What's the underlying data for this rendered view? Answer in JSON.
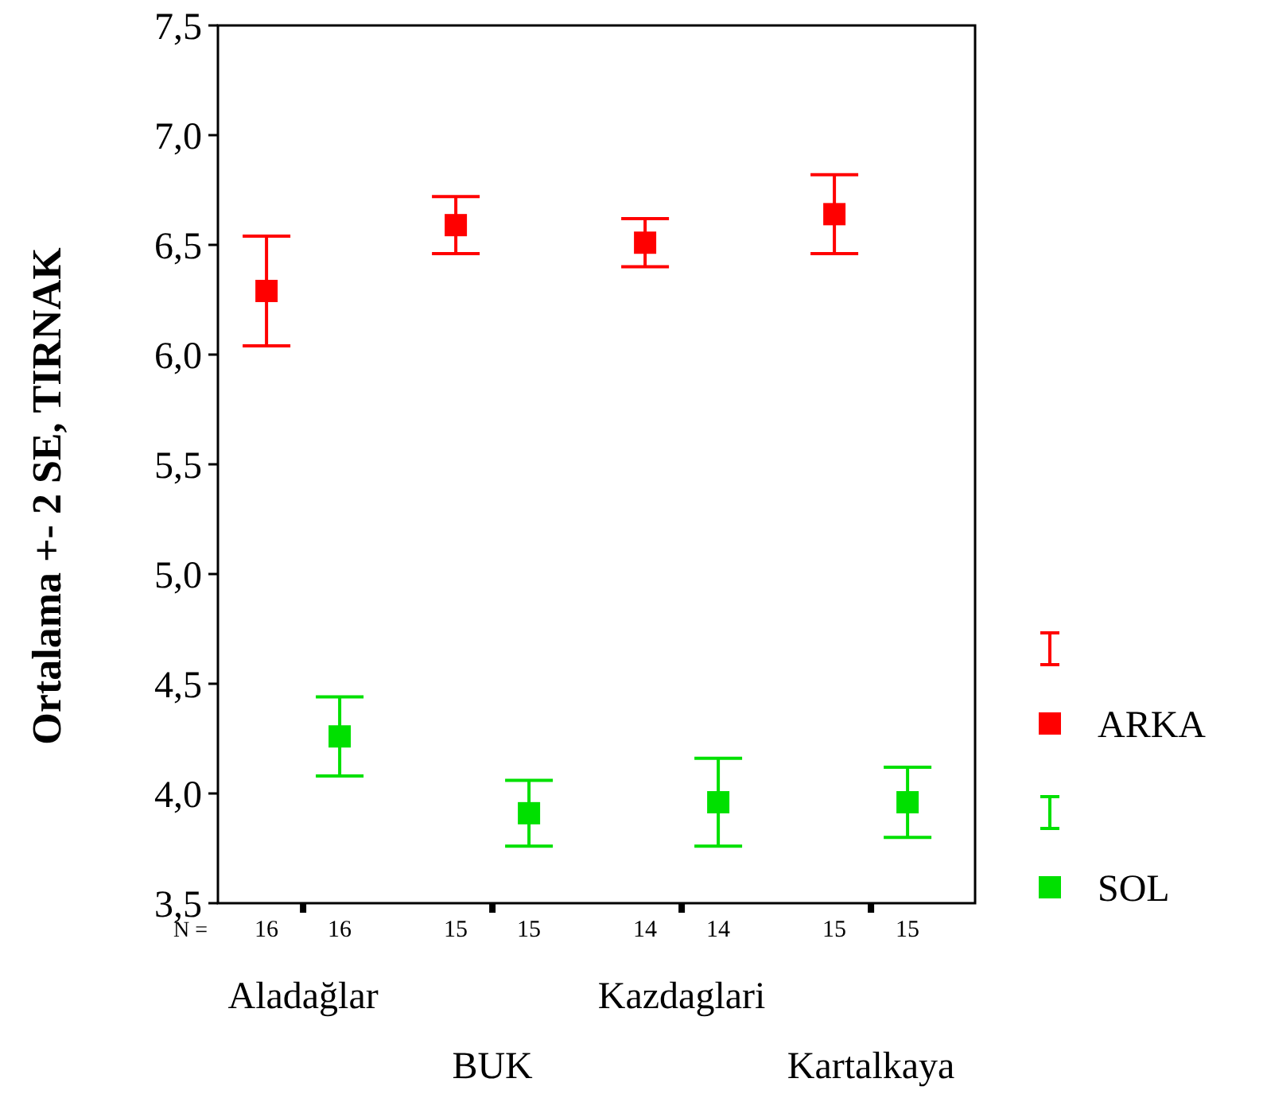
{
  "chart_data": {
    "type": "scatter",
    "ylabel": "Ortalama +- 2 SE, TIRNAK",
    "categories": [
      "Aladağlar",
      "BUK",
      "Kazdaglari",
      "Kartalkaya"
    ],
    "series": [
      {
        "name": "ARKA",
        "color": "#ff0000",
        "values": [
          6.29,
          6.59,
          6.51,
          6.64
        ],
        "errors": [
          0.25,
          0.13,
          0.11,
          0.18
        ]
      },
      {
        "name": "SOL",
        "color": "#00e000",
        "values": [
          4.26,
          3.91,
          3.96,
          3.96
        ],
        "errors": [
          0.18,
          0.15,
          0.2,
          0.16
        ]
      }
    ],
    "ylim": [
      3.5,
      7.5
    ],
    "yticks": [
      {
        "value": 3.5,
        "label": "3,5"
      },
      {
        "value": 4,
        "label": "4,0"
      },
      {
        "value": 4.5,
        "label": "4,5"
      },
      {
        "value": 5,
        "label": "5,0"
      },
      {
        "value": 5.5,
        "label": "5,5"
      },
      {
        "value": 6,
        "label": "6,0"
      },
      {
        "value": 6.5,
        "label": "6,5"
      },
      {
        "value": 7,
        "label": "7,0"
      },
      {
        "value": 7.5,
        "label": "7,5"
      }
    ],
    "marker": "square",
    "legend": "right",
    "grid": false,
    "annotations": [
      "N =",
      "16",
      "16",
      "15",
      "15",
      "14",
      "14",
      "15",
      "15"
    ]
  }
}
